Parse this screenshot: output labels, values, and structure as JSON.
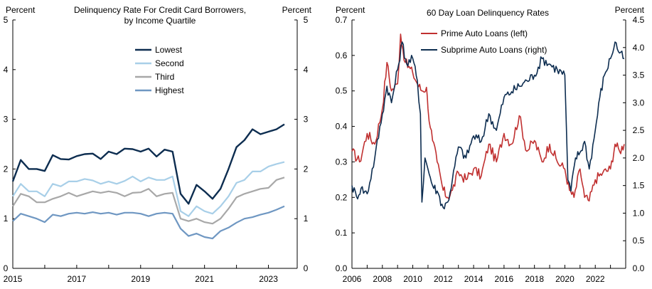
{
  "chart_data": [
    {
      "type": "line",
      "title": "Delinquency Rate For Credit Card Borrowers, by Income Quartile",
      "title_lines": [
        "Delinquency Rate For Credit Card Borrowers,",
        "by Income Quartile"
      ],
      "ylabel_left": "Percent",
      "ylabel_right": "Percent",
      "ylim": [
        0,
        5
      ],
      "yticks": [
        "0",
        "1",
        "2",
        "3",
        "4",
        "5"
      ],
      "xlim": [
        2015,
        2023.9
      ],
      "xticks": [
        "2015",
        "2017",
        "2019",
        "2021",
        "2023"
      ],
      "legend_position": "top-center",
      "x": [
        2015.0,
        2015.25,
        2015.5,
        2015.75,
        2016.0,
        2016.25,
        2016.5,
        2016.75,
        2017.0,
        2017.25,
        2017.5,
        2017.75,
        2018.0,
        2018.25,
        2018.5,
        2018.75,
        2019.0,
        2019.25,
        2019.5,
        2019.75,
        2020.0,
        2020.25,
        2020.5,
        2020.75,
        2021.0,
        2021.25,
        2021.5,
        2021.75,
        2022.0,
        2022.25,
        2022.5,
        2022.75,
        2023.0,
        2023.25,
        2023.5
      ],
      "series": [
        {
          "name": "Lowest",
          "color": "#0d2d50",
          "values": [
            1.75,
            2.18,
            2.0,
            2.0,
            1.96,
            2.28,
            2.2,
            2.19,
            2.26,
            2.3,
            2.31,
            2.2,
            2.35,
            2.3,
            2.41,
            2.4,
            2.35,
            2.41,
            2.25,
            2.39,
            2.35,
            1.5,
            1.3,
            1.68,
            1.55,
            1.4,
            1.6,
            2.0,
            2.44,
            2.58,
            2.8,
            2.7,
            2.75,
            2.8,
            2.9
          ]
        },
        {
          "name": "Second",
          "color": "#a8cfe8",
          "values": [
            1.45,
            1.7,
            1.55,
            1.55,
            1.45,
            1.7,
            1.65,
            1.75,
            1.75,
            1.8,
            1.77,
            1.7,
            1.75,
            1.7,
            1.76,
            1.85,
            1.75,
            1.83,
            1.78,
            1.78,
            1.85,
            1.15,
            1.05,
            1.25,
            1.15,
            1.1,
            1.25,
            1.45,
            1.72,
            1.78,
            1.95,
            1.95,
            2.05,
            2.1,
            2.14
          ]
        },
        {
          "name": "Third",
          "color": "#a8a8a8",
          "values": [
            1.25,
            1.5,
            1.45,
            1.33,
            1.33,
            1.4,
            1.45,
            1.52,
            1.45,
            1.5,
            1.55,
            1.52,
            1.55,
            1.52,
            1.45,
            1.52,
            1.53,
            1.6,
            1.45,
            1.5,
            1.52,
            1.0,
            0.95,
            1.0,
            0.93,
            0.9,
            1.0,
            1.2,
            1.43,
            1.5,
            1.55,
            1.6,
            1.62,
            1.78,
            1.83
          ]
        },
        {
          "name": "Highest",
          "color": "#6f97c2",
          "values": [
            0.95,
            1.1,
            1.05,
            1.0,
            0.93,
            1.08,
            1.05,
            1.1,
            1.12,
            1.1,
            1.13,
            1.1,
            1.12,
            1.08,
            1.12,
            1.12,
            1.1,
            1.05,
            1.1,
            1.12,
            1.1,
            0.8,
            0.65,
            0.7,
            0.63,
            0.6,
            0.75,
            0.82,
            0.92,
            1.0,
            1.03,
            1.08,
            1.12,
            1.18,
            1.25
          ]
        }
      ]
    },
    {
      "type": "line",
      "title": "60 Day Loan Delinquency Rates",
      "ylabel_left": "Percent",
      "ylabel_right": "Percent",
      "ylim_left": [
        0.0,
        0.7
      ],
      "yticks_left": [
        "0.0",
        "0.1",
        "0.2",
        "0.3",
        "0.4",
        "0.5",
        "0.6",
        "0.7"
      ],
      "ylim_right": [
        0.0,
        4.5
      ],
      "yticks_right": [
        "0.0",
        "0.5",
        "1.0",
        "1.5",
        "2.0",
        "2.5",
        "3.0",
        "3.5",
        "4.0",
        "4.5"
      ],
      "xlim": [
        2006,
        2024
      ],
      "xticks": [
        "2006",
        "2008",
        "2010",
        "2012",
        "2014",
        "2016",
        "2018",
        "2020",
        "2022"
      ],
      "legend_position": "top-center",
      "series": [
        {
          "name": "Prime Auto Loans (left)",
          "axis": "left",
          "color": "#c03030",
          "x": [
            2006.0,
            2006.5,
            2007.0,
            2007.5,
            2008.0,
            2008.3,
            2008.6,
            2009.0,
            2009.2,
            2009.5,
            2010.0,
            2010.3,
            2010.6,
            2010.9,
            2011.0,
            2011.3,
            2011.6,
            2012.0,
            2012.3,
            2012.6,
            2013.0,
            2013.5,
            2014.0,
            2014.5,
            2015.0,
            2015.5,
            2016.0,
            2016.5,
            2017.0,
            2017.5,
            2018.0,
            2018.5,
            2019.0,
            2019.5,
            2020.0,
            2020.3,
            2020.6,
            2021.0,
            2021.3,
            2021.6,
            2022.0,
            2022.5,
            2023.0,
            2023.3,
            2023.6,
            2023.9
          ],
          "values": [
            0.33,
            0.3,
            0.38,
            0.35,
            0.45,
            0.58,
            0.5,
            0.52,
            0.66,
            0.58,
            0.55,
            0.52,
            0.5,
            0.51,
            0.45,
            0.36,
            0.3,
            0.22,
            0.2,
            0.22,
            0.27,
            0.25,
            0.28,
            0.26,
            0.35,
            0.3,
            0.38,
            0.35,
            0.43,
            0.33,
            0.36,
            0.3,
            0.35,
            0.3,
            0.28,
            0.22,
            0.2,
            0.28,
            0.2,
            0.19,
            0.25,
            0.27,
            0.28,
            0.35,
            0.33,
            0.35
          ]
        },
        {
          "name": "Subprime Auto Loans (right)",
          "axis": "right",
          "color": "#0d2d50",
          "x": [
            2006.0,
            2006.3,
            2006.6,
            2007.0,
            2007.5,
            2008.0,
            2008.3,
            2008.6,
            2009.0,
            2009.3,
            2009.6,
            2010.0,
            2010.3,
            2010.5,
            2010.6,
            2010.8,
            2011.0,
            2011.3,
            2011.6,
            2012.0,
            2012.3,
            2012.6,
            2013.0,
            2013.5,
            2014.0,
            2014.5,
            2015.0,
            2015.5,
            2016.0,
            2016.5,
            2017.0,
            2017.5,
            2018.0,
            2018.5,
            2019.0,
            2019.5,
            2020.0,
            2020.2,
            2020.4,
            2020.7,
            2021.0,
            2021.3,
            2021.6,
            2022.0,
            2022.3,
            2022.6,
            2023.0,
            2023.3,
            2023.6,
            2023.9
          ],
          "values": [
            1.5,
            1.3,
            1.45,
            1.35,
            2.0,
            2.8,
            3.3,
            3.0,
            3.6,
            4.1,
            3.7,
            3.8,
            3.4,
            2.8,
            1.2,
            2.0,
            1.8,
            1.5,
            1.4,
            1.1,
            1.2,
            1.6,
            2.2,
            2.0,
            2.4,
            2.3,
            2.8,
            2.5,
            3.1,
            3.2,
            3.3,
            3.4,
            3.5,
            3.8,
            3.7,
            3.6,
            3.5,
            1.6,
            1.4,
            2.0,
            2.1,
            2.3,
            1.8,
            2.5,
            3.1,
            3.5,
            3.8,
            4.1,
            3.9,
            3.8
          ]
        }
      ]
    }
  ]
}
